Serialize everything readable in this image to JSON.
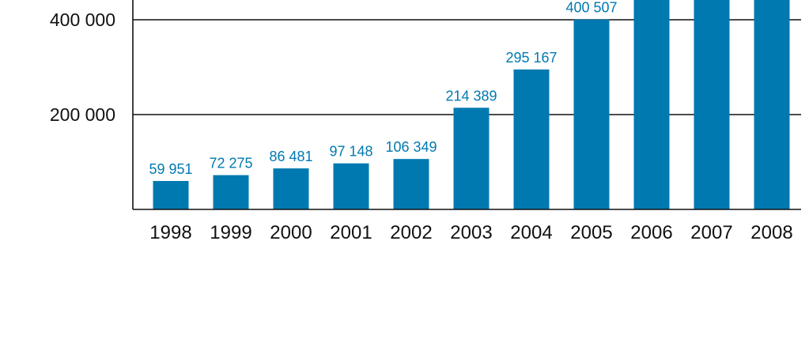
{
  "chart_data": {
    "type": "bar",
    "title": "",
    "xlabel": "",
    "ylabel": "",
    "categories": [
      "1998",
      "1999",
      "2000",
      "2001",
      "2002",
      "2003",
      "2004",
      "2005",
      "2006",
      "2007",
      "2008"
    ],
    "values": [
      59951,
      72275,
      86481,
      97148,
      106349,
      214389,
      295167,
      400507,
      null,
      null,
      null
    ],
    "data_labels": [
      "59 951",
      "72 275",
      "86 481",
      "97 148",
      "106 349",
      "214 389",
      "295 167",
      "400 507",
      "",
      "",
      ""
    ],
    "y_ticks": [
      {
        "value": 200000,
        "label": "200 000"
      },
      {
        "value": 400000,
        "label": "400 000"
      }
    ],
    "ylim": [
      0,
      440000
    ],
    "grid": true,
    "legend": "none",
    "colors": {
      "bar": "#0079b0",
      "data_label": "#0079b0",
      "grid": "#111111",
      "axis": "#111111",
      "text": "#111111"
    }
  }
}
